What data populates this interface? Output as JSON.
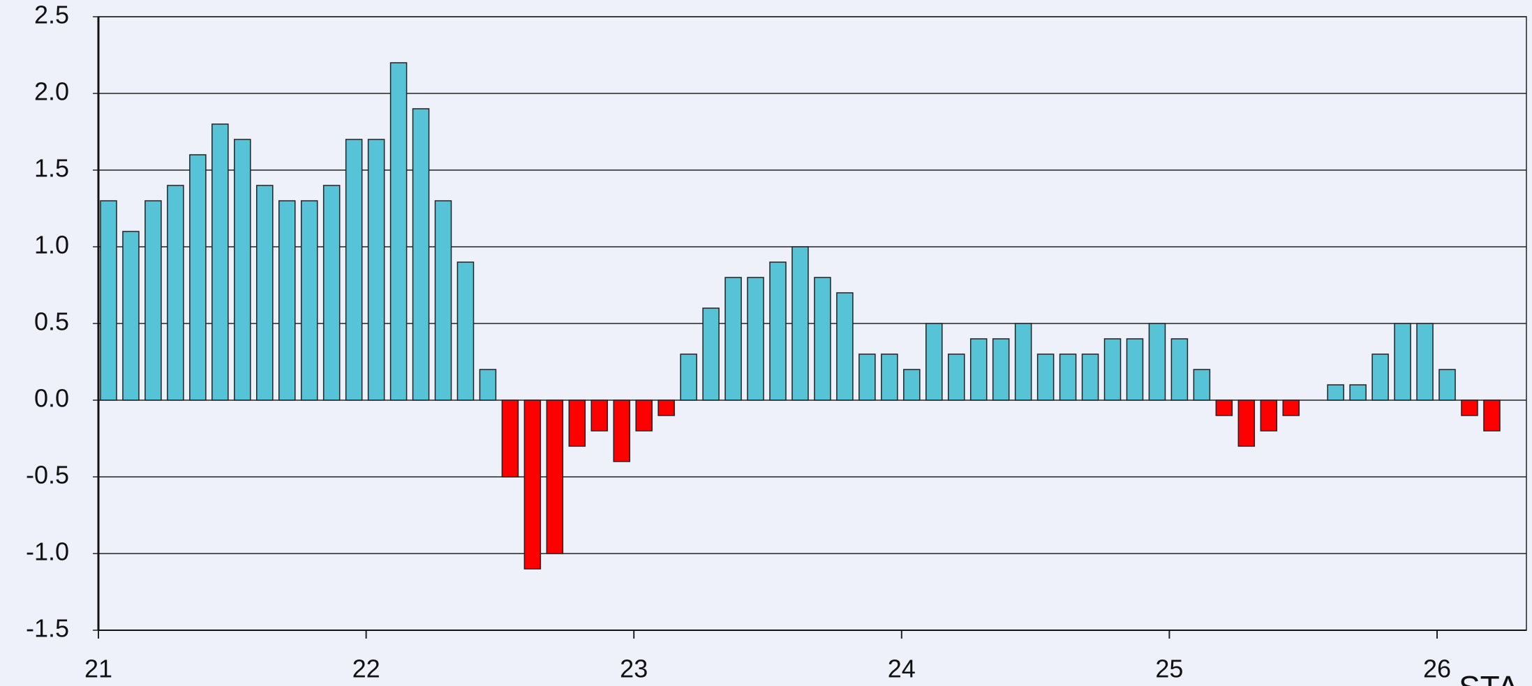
{
  "chart_data": {
    "type": "bar",
    "categories": [
      "21",
      null,
      null,
      null,
      null,
      null,
      null,
      null,
      null,
      null,
      null,
      null,
      "22",
      null,
      null,
      null,
      null,
      null,
      null,
      null,
      null,
      null,
      null,
      null,
      "23",
      null,
      null,
      null,
      null,
      null,
      null,
      null,
      null,
      null,
      null,
      null,
      "24",
      null,
      null,
      null,
      null,
      null,
      null,
      null,
      null,
      null,
      null,
      null,
      "25",
      null,
      null,
      null,
      null,
      null,
      null,
      null,
      null,
      null,
      null,
      null,
      "26",
      null,
      null
    ],
    "values": [
      1.3,
      1.1,
      1.3,
      1.4,
      1.6,
      1.8,
      1.7,
      1.4,
      1.3,
      1.3,
      1.4,
      1.7,
      1.7,
      2.2,
      1.9,
      1.3,
      0.9,
      0.2,
      -0.5,
      -1.1,
      -1.0,
      -0.3,
      -0.2,
      -0.4,
      -0.2,
      -0.1,
      0.3,
      0.6,
      0.8,
      0.8,
      0.9,
      1.0,
      0.8,
      0.7,
      0.3,
      0.3,
      0.2,
      0.5,
      0.3,
      0.4,
      0.4,
      0.5,
      0.3,
      0.3,
      0.3,
      0.4,
      0.4,
      0.5,
      0.4,
      0.2,
      -0.1,
      -0.3,
      -0.2,
      -0.1,
      0,
      0.1,
      0.1,
      0.3,
      0.5,
      0.5,
      0.2,
      -0.1,
      -0.2
    ],
    "color": "#56c4d6",
    "negative_color": "#ff0000",
    "ylim": [
      -1.5,
      2.5
    ],
    "yticks": [
      {
        "value": -1.5,
        "label": "-1.5"
      },
      {
        "value": -1,
        "label": "-1.0"
      },
      -0.5,
      {
        "value": 0,
        "label": "0.0"
      },
      0.5,
      {
        "value": 1,
        "label": "1.0"
      },
      1.5,
      {
        "value": 2,
        "label": "2.0"
      },
      2.5
    ],
    "grid": true,
    "watermark": "STA"
  }
}
